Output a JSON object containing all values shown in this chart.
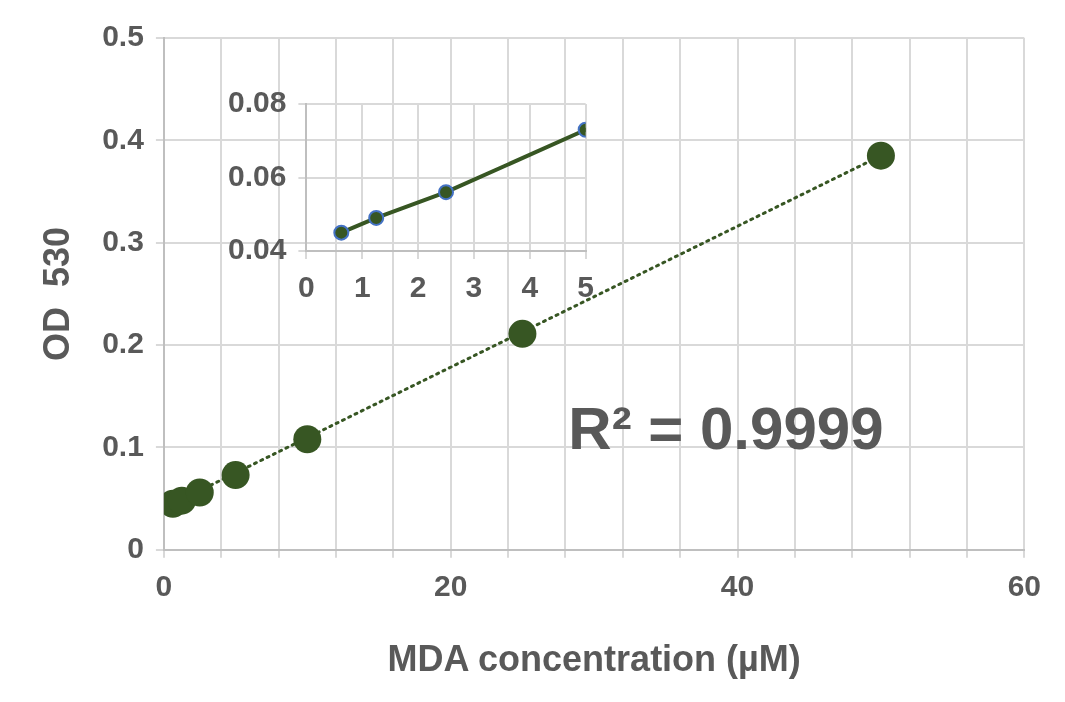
{
  "chart_data": [
    {
      "type": "scatter",
      "xlabel": "MDA concentration (µM)",
      "ylabel": "OD  530",
      "xlim": [
        0,
        60
      ],
      "ylim": [
        0,
        0.5
      ],
      "xticks": [
        0,
        {
          "value": 4,
          "label": null
        },
        {
          "value": 8,
          "label": null
        },
        {
          "value": 12,
          "label": null
        },
        {
          "value": 16,
          "label": null
        },
        20,
        {
          "value": 24,
          "label": null
        },
        {
          "value": 28,
          "label": null
        },
        {
          "value": 32,
          "label": null
        },
        {
          "value": 36,
          "label": null
        },
        40,
        {
          "value": 44,
          "label": null
        },
        {
          "value": 48,
          "label": null
        },
        {
          "value": 52,
          "label": null
        },
        {
          "value": 56,
          "label": null
        },
        60
      ],
      "yticks": [
        0,
        0.1,
        0.2,
        0.3,
        0.4,
        0.5
      ],
      "grid": true,
      "legend": false,
      "series": [
        {
          "color": "#375623",
          "x": [
            0.625,
            1.25,
            2.5,
            5,
            10,
            25,
            50
          ],
          "values": [
            0.045,
            0.048,
            0.056,
            0.073,
            0.108,
            0.211,
            0.385
          ],
          "marker": "circle"
        },
        {
          "type": "line",
          "color": "#375623",
          "x": [
            0.625,
            50
          ],
          "values": [
            0.045,
            0.385
          ],
          "marker": "none",
          "line_style": "dotted"
        }
      ],
      "annotations": [
        "R² = 0.9999"
      ]
    },
    {
      "type": "line",
      "xlim": [
        0,
        5
      ],
      "ylim": [
        0.04,
        0.08
      ],
      "xticks": [
        0,
        1,
        2,
        3,
        4,
        5
      ],
      "yticks": [
        0.04,
        0.06,
        0.08
      ],
      "grid": true,
      "legend": false,
      "series": [
        {
          "color": "#375623",
          "x": [
            0.625,
            1.25,
            2.5,
            5
          ],
          "values": [
            0.045,
            0.049,
            0.056,
            0.073
          ],
          "marker": "circle",
          "line_style": "solid"
        }
      ]
    }
  ]
}
